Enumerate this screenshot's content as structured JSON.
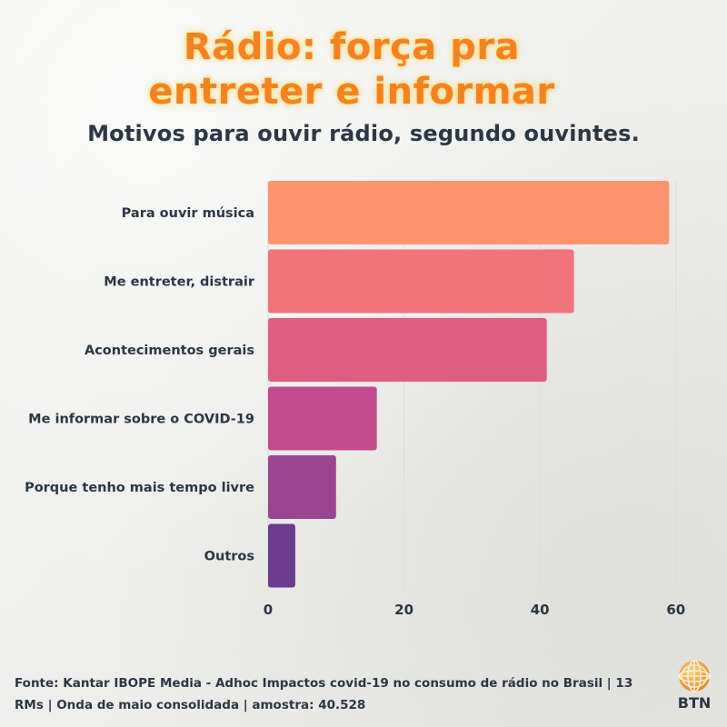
{
  "title": {
    "line1": "Rádio: força pra",
    "line2": "entreter e informar"
  },
  "subtitle": "Motivos para ouvir rádio, segundo ouvintes.",
  "chart_data": {
    "type": "bar",
    "orientation": "horizontal",
    "categories": [
      "Para ouvir música",
      "Me entreter, distrair",
      "Acontecimentos gerais",
      "Me informar sobre o COVID-19",
      "Porque tenho mais tempo livre",
      "Outros"
    ],
    "values": [
      59,
      45,
      41,
      16,
      10,
      4
    ],
    "colors": [
      "#fe9370",
      "#f1737c",
      "#de5d82",
      "#c44a8e",
      "#9b4590",
      "#6c3c90"
    ],
    "xlim": [
      0,
      60
    ],
    "xticks": [
      0,
      20,
      40,
      60
    ],
    "grid": true,
    "title": "",
    "xlabel": "",
    "ylabel": ""
  },
  "footer": {
    "line1": "Fonte: Kantar IBOPE Media - Adhoc Impactos covid-19 no consumo de rádio no Brasil | 13",
    "line2": "RMs | Onda de maio consolidada | amostra: 40.528"
  },
  "logo": {
    "text": "BTN",
    "icon": "globe-icon",
    "color": "#f5a623"
  }
}
